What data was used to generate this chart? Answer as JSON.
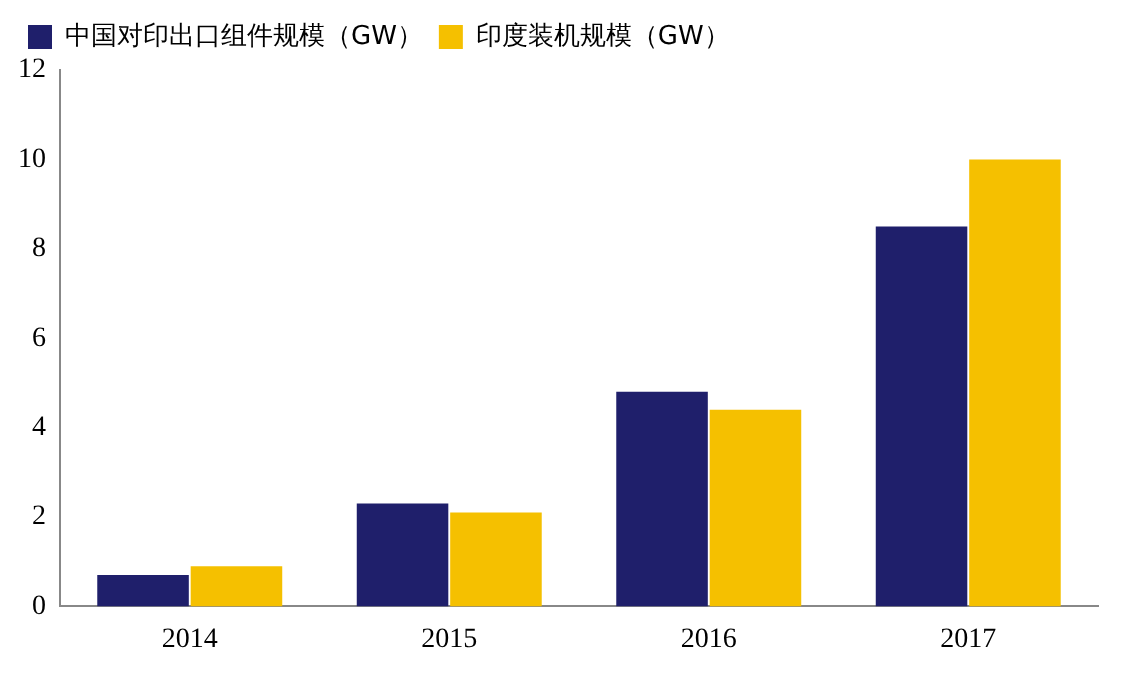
{
  "chart_data": {
    "type": "bar",
    "categories": [
      "2014",
      "2015",
      "2016",
      "2017"
    ],
    "series": [
      {
        "name": "中国对印出口组件规模（GW）",
        "color": "#1f1f6b",
        "values": [
          0.7,
          2.3,
          4.8,
          8.5
        ]
      },
      {
        "name": "印度装机规模（GW）",
        "color": "#f5c000",
        "values": [
          0.9,
          2.1,
          4.4,
          10.0
        ]
      }
    ],
    "ylim": [
      0,
      12
    ],
    "yticks": [
      0,
      2,
      4,
      6,
      8,
      10,
      12
    ],
    "grid": false,
    "legend": "top left"
  }
}
